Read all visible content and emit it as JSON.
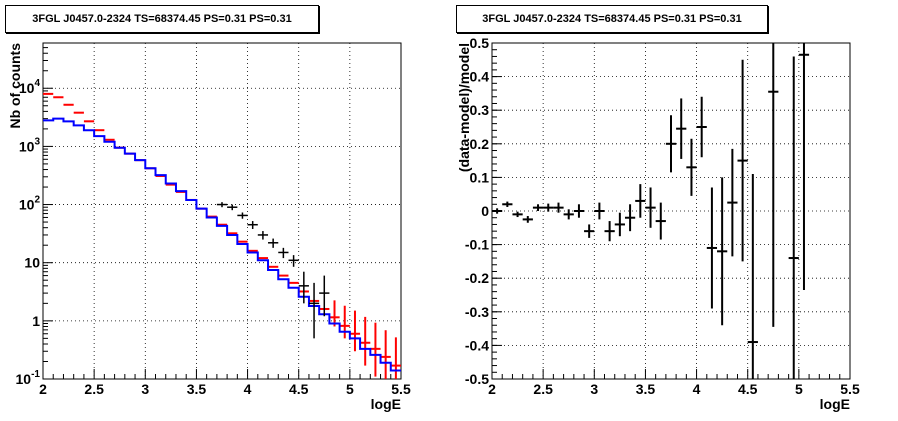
{
  "chart_data": [
    {
      "type": "line",
      "title": "3FGL J0457.0-2324 TS=68374.45 PS=0.31 PS=0.31",
      "xlabel": "logE",
      "ylabel": "Nb of counts",
      "xlim": [
        2,
        5.5
      ],
      "ylim": [
        0.1,
        60000
      ],
      "yscale": "log",
      "grid": true,
      "x_ticks": [
        "2",
        "2.5",
        "3",
        "3.5",
        "4",
        "4.5",
        "5",
        "5.5"
      ],
      "y_ticks": [
        "10<sup>-1</sup>",
        "1",
        "10",
        "10²",
        "10³",
        "10⁴"
      ],
      "y_tick_labels": [
        {
          "base": "10",
          "exp": "-1"
        },
        {
          "base": "1",
          "exp": ""
        },
        {
          "base": "10",
          "exp": ""
        },
        {
          "base": "10",
          "exp": "2"
        },
        {
          "base": "10",
          "exp": "3"
        },
        {
          "base": "10",
          "exp": "4"
        }
      ],
      "bin_edges": [
        2.0,
        2.1,
        2.2,
        2.3,
        2.4,
        2.5,
        2.6,
        2.7,
        2.8,
        2.9,
        3.0,
        3.1,
        3.2,
        3.3,
        3.4,
        3.5,
        3.6,
        3.7,
        3.8,
        3.9,
        4.0,
        4.1,
        4.2,
        4.3,
        4.4,
        4.5,
        4.6,
        4.7,
        4.8,
        4.9,
        5.0,
        5.1,
        5.2,
        5.3,
        5.4,
        5.5
      ],
      "series": [
        {
          "name": "",
          "color": "#0000ff",
          "kind": "step",
          "values": [
            2800,
            3000,
            2700,
            2300,
            1900,
            1500,
            1200,
            950,
            750,
            580,
            420,
            320,
            230,
            170,
            120,
            85,
            60,
            43,
            30,
            21,
            15,
            11,
            7.5,
            5.2,
            3.7,
            2.6,
            1.8,
            1.3,
            0.9,
            0.65,
            0.5,
            0.33,
            0.26,
            0.19,
            0.14
          ]
        },
        {
          "name": "",
          "color": "#ff0000",
          "kind": "errorbar",
          "values": [
            8000,
            7000,
            5200,
            3800,
            2700,
            1900,
            1300,
            950,
            750,
            580,
            420,
            310,
            220,
            165,
            120,
            85,
            62,
            45,
            32,
            23,
            16,
            12,
            8.5,
            6.0,
            4.5,
            3.2,
            2.2,
            1.6,
            1.15,
            0.82,
            0.6,
            0.42,
            0.33,
            0.24,
            0.17
          ],
          "err_lo": [
            0,
            0,
            0,
            0,
            0,
            0,
            0,
            0,
            0,
            0,
            0,
            0,
            0,
            0,
            0,
            0,
            0,
            0,
            0,
            0,
            0,
            0,
            0,
            0,
            0,
            0,
            0,
            0,
            0.35,
            0.32,
            0.3,
            0.25,
            0.22,
            0.17,
            0.13
          ],
          "err_hi": [
            0,
            0,
            0,
            0,
            0,
            0,
            0,
            0,
            0,
            0,
            0,
            0,
            0,
            0,
            0,
            0,
            0,
            0,
            0,
            0,
            0,
            0,
            0,
            0,
            0,
            0,
            0,
            0,
            1.1,
            1.0,
            0.9,
            0.75,
            0.6,
            0.45,
            0.35
          ]
        },
        {
          "name": "",
          "color": "#000000",
          "kind": "errorbar",
          "x": [
            3.75,
            3.85,
            3.95,
            4.05,
            4.15,
            4.25,
            4.35,
            4.45,
            4.55,
            4.65,
            4.75
          ],
          "values": [
            100,
            90,
            65,
            45,
            30,
            22,
            15,
            11,
            4.0,
            2.0,
            3.0
          ],
          "err_lo": [
            10,
            10,
            8,
            7,
            5,
            4,
            3,
            2.5,
            2.0,
            1.5,
            1.8
          ],
          "err_hi": [
            10,
            10,
            8,
            7,
            5,
            4,
            3,
            2.5,
            3.0,
            2.5,
            3.0
          ]
        }
      ]
    },
    {
      "type": "scatter",
      "title": "3FGL J0457.0-2324 TS=68374.45 PS=0.31 PS=0.31",
      "xlabel": "logE",
      "ylabel": "(data-model)/model",
      "xlim": [
        2,
        5.5
      ],
      "ylim": [
        -0.5,
        0.5
      ],
      "grid": true,
      "x_ticks": [
        "2",
        "2.5",
        "3",
        "3.5",
        "4",
        "4.5",
        "5",
        "5.5"
      ],
      "y_ticks": [
        "-0.5",
        "-0.4",
        "-0.3",
        "-0.2",
        "-0.1",
        "0",
        "0.1",
        "0.2",
        "0.3",
        "0.4",
        "0.5"
      ],
      "series": [
        {
          "name": "",
          "color": "#000000",
          "x": [
            2.05,
            2.15,
            2.25,
            2.35,
            2.45,
            2.55,
            2.65,
            2.75,
            2.85,
            2.95,
            3.05,
            3.15,
            3.25,
            3.35,
            3.45,
            3.55,
            3.65,
            3.75,
            3.85,
            3.95,
            4.05,
            4.15,
            4.25,
            4.35,
            4.45,
            4.55,
            4.75,
            4.95,
            5.05
          ],
          "y": [
            0.0,
            0.02,
            -0.01,
            -0.025,
            0.01,
            0.01,
            0.01,
            -0.01,
            0.0,
            -0.06,
            0.0,
            -0.06,
            -0.04,
            -0.02,
            0.03,
            0.01,
            -0.03,
            0.2,
            0.245,
            0.13,
            0.25,
            -0.11,
            -0.12,
            0.025,
            0.15,
            -0.39,
            0.355,
            -0.14,
            0.465
          ],
          "err": [
            0.008,
            0.008,
            0.008,
            0.01,
            0.01,
            0.012,
            0.015,
            0.015,
            0.02,
            0.02,
            0.025,
            0.03,
            0.035,
            0.04,
            0.05,
            0.06,
            0.055,
            0.085,
            0.09,
            0.085,
            0.09,
            0.18,
            0.22,
            0.16,
            0.3,
            0.5,
            0.7,
            0.6,
            0.7
          ]
        }
      ]
    }
  ]
}
